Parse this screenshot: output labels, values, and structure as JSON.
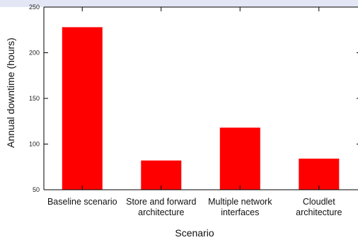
{
  "chart_data": {
    "type": "bar",
    "categories": [
      [
        "Baseline scenario"
      ],
      [
        "Store and forward",
        "architecture"
      ],
      [
        "Multiple network",
        "interfaces"
      ],
      [
        "Cloudlet",
        "architecture"
      ]
    ],
    "values": [
      228,
      82,
      118,
      84
    ],
    "title": "",
    "xlabel": "Scenario",
    "ylabel": "Annual downtime (hours)",
    "ylim": [
      50,
      250
    ],
    "yticks": [
      50,
      100,
      150,
      200,
      250
    ],
    "grid": false,
    "bar_color": "#ff0000",
    "axis_color": "#000000"
  }
}
